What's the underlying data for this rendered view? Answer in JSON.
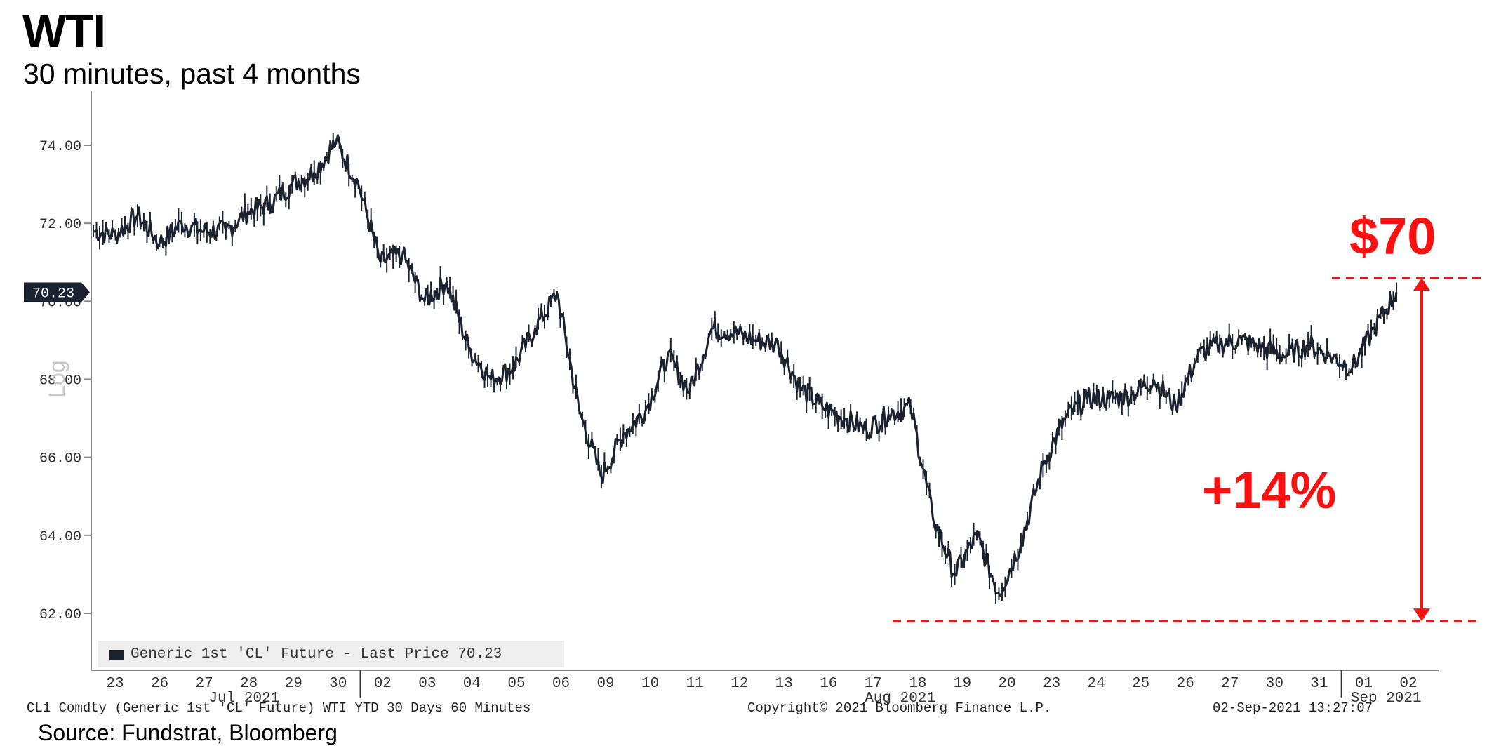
{
  "title": "WTI",
  "subtitle": "30 minutes, past 4 months",
  "source": "Source: Fundstrat, Bloomberg",
  "footer": {
    "left": "CL1 Comdty (Generic 1st 'CL' Future) WTI YTD 30 Days 60 Minutes",
    "mid": "Copyright© 2021 Bloomberg Finance L.P.",
    "right": "02-Sep-2021 13:27:07"
  },
  "annotations": {
    "price_label": "$70",
    "change_label": "+14%",
    "high_level": 70.6,
    "low_level": 61.8
  },
  "colors": {
    "line": "#1a2230",
    "annotation": "#ff1010",
    "axis": "#888888",
    "last_price_tag": "#1a2230"
  },
  "chart_data": {
    "type": "line",
    "title": "WTI",
    "subtitle": "30 minutes, past 4 months",
    "xlabel": "",
    "ylabel": "Log",
    "ylim": [
      60.8,
      75.4
    ],
    "y_ticks": [
      "74.00",
      "72.00",
      "70.00",
      "68.00",
      "66.00",
      "64.00",
      "62.00"
    ],
    "y_tick_values": [
      74,
      72,
      70,
      68,
      66,
      64,
      62
    ],
    "last_price_label": "70.23",
    "legend_label": "Generic 1st 'CL' Future - Last Price 70.23",
    "x_ticks": [
      "23",
      "26",
      "27",
      "28",
      "29",
      "30",
      "02",
      "03",
      "04",
      "05",
      "06",
      "09",
      "10",
      "11",
      "12",
      "13",
      "16",
      "17",
      "18",
      "19",
      "20",
      "23",
      "24",
      "25",
      "26",
      "27",
      "30",
      "31",
      "01",
      "02"
    ],
    "x_month_labels": [
      "Jul 2021",
      "Aug 2021",
      "Sep 2021"
    ],
    "series": [
      {
        "name": "Generic 1st 'CL' Future - Last Price",
        "x": [
          "Jul 23",
          "Jul 23",
          "Jul 26",
          "Jul 26",
          "Jul 27",
          "Jul 27",
          "Jul 28",
          "Jul 28",
          "Jul 29",
          "Jul 29",
          "Jul 30",
          "Jul 30",
          "Aug 02",
          "Aug 02",
          "Aug 03",
          "Aug 03",
          "Aug 04",
          "Aug 04",
          "Aug 05",
          "Aug 05",
          "Aug 06",
          "Aug 06",
          "Aug 09",
          "Aug 09",
          "Aug 10",
          "Aug 10",
          "Aug 11",
          "Aug 11",
          "Aug 12",
          "Aug 12",
          "Aug 13",
          "Aug 13",
          "Aug 16",
          "Aug 16",
          "Aug 17",
          "Aug 17",
          "Aug 18",
          "Aug 18",
          "Aug 19",
          "Aug 19",
          "Aug 20",
          "Aug 20",
          "Aug 23",
          "Aug 23",
          "Aug 24",
          "Aug 24",
          "Aug 25",
          "Aug 25",
          "Aug 26",
          "Aug 26",
          "Aug 27",
          "Aug 27",
          "Aug 30",
          "Aug 30",
          "Aug 31",
          "Aug 31",
          "Sep 01",
          "Sep 01",
          "Sep 02",
          "Sep 02"
        ],
        "values": [
          71.8,
          71.7,
          72.2,
          71.5,
          72.0,
          71.8,
          71.8,
          72.3,
          72.5,
          73.0,
          73.3,
          74.1,
          73.0,
          71.0,
          71.2,
          70.0,
          70.5,
          68.8,
          68.0,
          68.3,
          69.3,
          70.2,
          67.2,
          65.5,
          66.6,
          67.2,
          68.6,
          67.7,
          69.3,
          69.2,
          69.0,
          68.9,
          67.8,
          67.3,
          67.0,
          66.7,
          67.1,
          67.3,
          64.5,
          63.0,
          64.0,
          62.5,
          63.8,
          65.8,
          67.0,
          67.5,
          67.5,
          67.6,
          68.0,
          67.3,
          68.6,
          68.9,
          69.0,
          68.8,
          68.6,
          68.9,
          68.6,
          68.3,
          69.3,
          70.23
        ]
      }
    ]
  }
}
